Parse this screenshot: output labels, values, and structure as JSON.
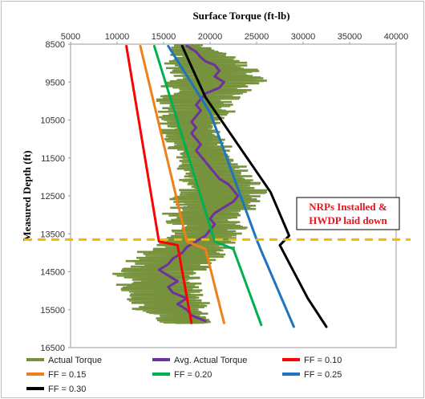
{
  "chart_data": {
    "type": "line",
    "title": "",
    "xlabel": "Surface Torque (ft-lb)",
    "ylabel": "Measured Depth (ft)",
    "xlim": [
      5000,
      40000
    ],
    "ylim": [
      8500,
      16500
    ],
    "y_inverted": true,
    "x_axis_position": "top",
    "x_ticks": [
      "5000",
      "10000",
      "15000",
      "20000",
      "25000",
      "30000",
      "35000",
      "40000"
    ],
    "y_ticks": [
      "8500",
      "9500",
      "10500",
      "11500",
      "12500",
      "13500",
      "14500",
      "15500",
      "16500"
    ],
    "grid": false,
    "legend_position": "bottom",
    "series": [
      {
        "name": "Actual Torque",
        "color": "#76923c",
        "type": "noisy-band",
        "points": [
          [
            17500,
            8500
          ],
          [
            18500,
            8700
          ],
          [
            19500,
            8900
          ],
          [
            20000,
            9100
          ],
          [
            20500,
            9300
          ],
          [
            20500,
            9500
          ],
          [
            19500,
            9700
          ],
          [
            19000,
            9900
          ],
          [
            18500,
            10100
          ],
          [
            18500,
            10300
          ],
          [
            18000,
            10500
          ],
          [
            18000,
            10700
          ],
          [
            18000,
            10900
          ],
          [
            18500,
            11100
          ],
          [
            19000,
            11300
          ],
          [
            19500,
            11500
          ],
          [
            20000,
            11700
          ],
          [
            20500,
            11900
          ],
          [
            21000,
            12100
          ],
          [
            21500,
            12300
          ],
          [
            21000,
            12500
          ],
          [
            20500,
            12700
          ],
          [
            20000,
            12900
          ],
          [
            19500,
            13100
          ],
          [
            20000,
            13300
          ],
          [
            19500,
            13500
          ],
          [
            18500,
            13700
          ],
          [
            17500,
            13900
          ],
          [
            16500,
            14100
          ],
          [
            15500,
            14300
          ],
          [
            14500,
            14500
          ],
          [
            14500,
            14700
          ],
          [
            14500,
            14900
          ],
          [
            15000,
            15100
          ],
          [
            15500,
            15300
          ],
          [
            16000,
            15500
          ],
          [
            17000,
            15700
          ],
          [
            17500,
            15850
          ]
        ],
        "spread": [
          [
            8500,
            3000
          ],
          [
            9000,
            9000
          ],
          [
            9500,
            10000
          ],
          [
            10000,
            8000
          ],
          [
            10500,
            6000
          ],
          [
            11000,
            6000
          ],
          [
            11500,
            6000
          ],
          [
            12000,
            7000
          ],
          [
            12500,
            9000
          ],
          [
            13000,
            8000
          ],
          [
            13500,
            7000
          ],
          [
            14000,
            9000
          ],
          [
            14500,
            9000
          ],
          [
            15000,
            8000
          ],
          [
            15500,
            7000
          ],
          [
            15850,
            5000
          ]
        ]
      },
      {
        "name": "Avg. Actual Torque",
        "color": "#7030a0",
        "points": [
          [
            17500,
            8550
          ],
          [
            18500,
            8700
          ],
          [
            19000,
            8850
          ],
          [
            19500,
            8950
          ],
          [
            20500,
            9050
          ],
          [
            21000,
            9200
          ],
          [
            20500,
            9350
          ],
          [
            21500,
            9500
          ],
          [
            21000,
            9650
          ],
          [
            19500,
            9800
          ],
          [
            19000,
            9950
          ],
          [
            18500,
            10100
          ],
          [
            19000,
            10250
          ],
          [
            18500,
            10400
          ],
          [
            18000,
            10550
          ],
          [
            18500,
            10700
          ],
          [
            18000,
            10850
          ],
          [
            18500,
            11000
          ],
          [
            19000,
            11150
          ],
          [
            18500,
            11300
          ],
          [
            19000,
            11450
          ],
          [
            19500,
            11600
          ],
          [
            20000,
            11750
          ],
          [
            20500,
            11900
          ],
          [
            21000,
            12050
          ],
          [
            22000,
            12200
          ],
          [
            22500,
            12350
          ],
          [
            23000,
            12500
          ],
          [
            22500,
            12650
          ],
          [
            21500,
            12800
          ],
          [
            20500,
            12950
          ],
          [
            20000,
            13100
          ],
          [
            20500,
            13250
          ],
          [
            20000,
            13400
          ],
          [
            19500,
            13550
          ],
          [
            18500,
            13700
          ],
          [
            17500,
            13850
          ],
          [
            17000,
            14000
          ],
          [
            16000,
            14150
          ],
          [
            15500,
            14300
          ],
          [
            14500,
            14450
          ],
          [
            15500,
            14600
          ],
          [
            16500,
            14750
          ],
          [
            15500,
            14900
          ],
          [
            16000,
            15050
          ],
          [
            17500,
            15200
          ],
          [
            16500,
            15350
          ],
          [
            17500,
            15500
          ],
          [
            18000,
            15650
          ],
          [
            19500,
            15800
          ]
        ]
      },
      {
        "name": "FF = 0.10",
        "color": "#ff0000",
        "points": [
          [
            11000,
            8550
          ],
          [
            14500,
            13700
          ],
          [
            16500,
            13800
          ],
          [
            18000,
            15850
          ]
        ]
      },
      {
        "name": "FF = 0.15",
        "color": "#f07f19",
        "points": [
          [
            12500,
            8550
          ],
          [
            17500,
            13700
          ],
          [
            19500,
            13900
          ],
          [
            21500,
            15850
          ]
        ]
      },
      {
        "name": "FF = 0.20",
        "color": "#00b050",
        "points": [
          [
            14000,
            8550
          ],
          [
            20500,
            13700
          ],
          [
            22500,
            13900
          ],
          [
            25500,
            15900
          ]
        ]
      },
      {
        "name": "FF = 0.25",
        "color": "#1f74bf",
        "points": [
          [
            15500,
            8550
          ],
          [
            20000,
            10300
          ],
          [
            25000,
            13650
          ],
          [
            25500,
            13950
          ],
          [
            29000,
            15950
          ]
        ]
      },
      {
        "name": "FF = 0.30",
        "color": "#000000",
        "points": [
          [
            17000,
            8550
          ],
          [
            19500,
            9900
          ],
          [
            26500,
            12400
          ],
          [
            28500,
            13550
          ],
          [
            27500,
            13800
          ],
          [
            30500,
            15200
          ],
          [
            32500,
            15950
          ]
        ]
      }
    ],
    "reference_line": {
      "y": 13650,
      "color": "#f5b800",
      "style": "dashed"
    },
    "annotations": [
      {
        "text": "NRPs Installed &\nHWDP laid down",
        "color": "#e8141b"
      }
    ]
  }
}
